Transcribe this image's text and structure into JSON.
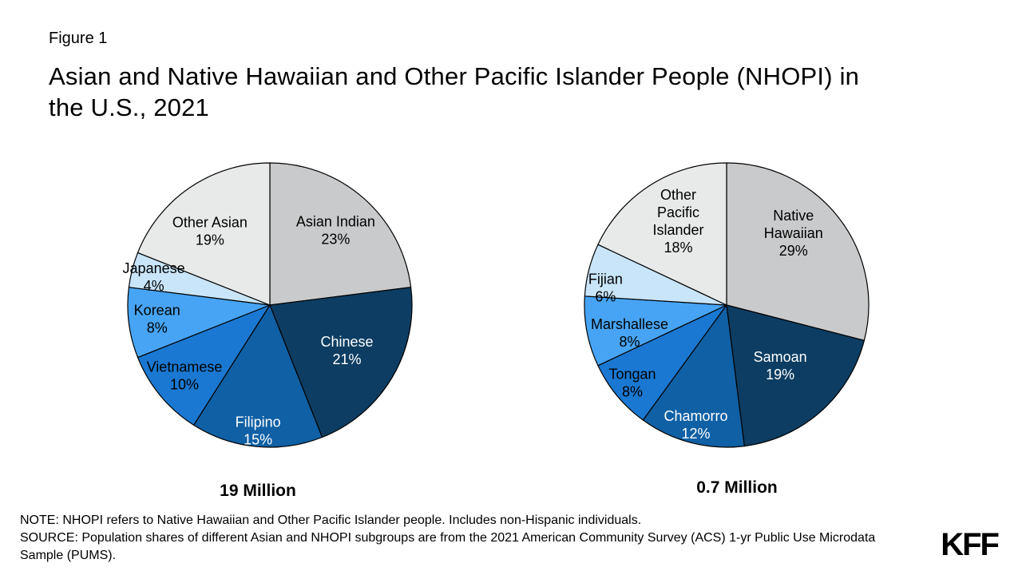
{
  "figure_label": "Figure 1",
  "title": "Asian and Native Hawaiian and Other Pacific Islander People (NHOPI) in the U.S., 2021",
  "note": "NOTE: NHOPI refers to Native Hawaiian and Other Pacific Islander people. Includes non-Hispanic individuals.",
  "source": "SOURCE: Population shares of different Asian and NHOPI subgroups are from the 2021 American Community Survey (ACS) 1-yr Public Use Microdata Sample (PUMS).",
  "logo_text": "KFF",
  "colors": {
    "background": "#FFFFFF",
    "text": "#000000",
    "slice_stroke": "#000000",
    "gray_dark": "#C9CACB",
    "gray_light": "#E8E9E9",
    "navy": "#0D3D62",
    "blue_dark": "#0F60A5",
    "blue_mid": "#1A78D2",
    "blue_light": "#47A4F4",
    "blue_pale": "#C9E5FA"
  },
  "chart_data": [
    {
      "type": "pie",
      "name": "asian-subgroups",
      "total_label": "19 Million",
      "start_angle_deg": 0,
      "direction": "clockwise",
      "slices": [
        {
          "id": "asian-indian",
          "label": "Asian Indian",
          "value": 23,
          "pct_label": "23%",
          "color": "#C9CACB",
          "text_color": "#000000",
          "label_lines": [
            "Asian Indian",
            "23%"
          ],
          "label_r": 0.7
        },
        {
          "id": "chinese",
          "label": "Chinese",
          "value": 21,
          "pct_label": "21%",
          "color": "#0D3D62",
          "text_color": "#FFFFFF",
          "label_lines": [
            "Chinese",
            "21%"
          ],
          "label_r": 0.63
        },
        {
          "id": "filipino",
          "label": "Filipino",
          "value": 15,
          "pct_label": "15%",
          "color": "#0F60A5",
          "text_color": "#FFFFFF",
          "label_lines": [
            "Filipino",
            "15%"
          ],
          "label_r": 0.89
        },
        {
          "id": "vietnamese",
          "label": "Vietnamese",
          "value": 10,
          "pct_label": "10%",
          "color": "#1A78D2",
          "text_color": "#000000",
          "label_lines": [
            "Vietnamese",
            "10%"
          ],
          "label_r": 0.78
        },
        {
          "id": "korean",
          "label": "Korean",
          "value": 8,
          "pct_label": "8%",
          "color": "#47A4F4",
          "text_color": "#000000",
          "label_lines": [
            "Korean",
            "8%"
          ],
          "label_r": 0.8,
          "label_angle": 263
        },
        {
          "id": "japanese",
          "label": "Japanese",
          "value": 4,
          "pct_label": "4%",
          "color": "#C9E5FA",
          "text_color": "#000000",
          "label_lines": [
            "Japanese",
            "4%"
          ],
          "label_r": 0.84,
          "label_angle": 283.5
        },
        {
          "id": "other-asian",
          "label": "Other Asian",
          "value": 19,
          "pct_label": "19%",
          "color": "#E8E9E9",
          "text_color": "#000000",
          "label_lines": [
            "Other Asian",
            "19%"
          ],
          "label_r": 0.67,
          "label_angle": 321
        }
      ]
    },
    {
      "type": "pie",
      "name": "nhopi-subgroups",
      "total_label": "0.7 Million",
      "start_angle_deg": 0,
      "direction": "clockwise",
      "slices": [
        {
          "id": "native-hawaiian",
          "label": "Native Hawaiian",
          "value": 29,
          "pct_label": "29%",
          "color": "#C9CACB",
          "text_color": "#000000",
          "label_lines": [
            "Native",
            "Hawaiian",
            "29%"
          ],
          "label_r": 0.69,
          "label_angle": 43
        },
        {
          "id": "samoan",
          "label": "Samoan",
          "value": 19,
          "pct_label": "19%",
          "color": "#0D3D62",
          "text_color": "#FFFFFF",
          "label_lines": [
            "Samoan",
            "19%"
          ],
          "label_r": 0.57
        },
        {
          "id": "chamorro",
          "label": "Chamorro",
          "value": 12,
          "pct_label": "12%",
          "color": "#0F60A5",
          "text_color": "#FFFFFF",
          "label_lines": [
            "Chamorro",
            "12%"
          ],
          "label_r": 0.87
        },
        {
          "id": "tongan",
          "label": "Tongan",
          "value": 8,
          "pct_label": "8%",
          "color": "#1A78D2",
          "text_color": "#000000",
          "label_lines": [
            "Tongan",
            "8%"
          ],
          "label_r": 0.86
        },
        {
          "id": "marshallese",
          "label": "Marshallese",
          "value": 8,
          "pct_label": "8%",
          "color": "#47A4F4",
          "text_color": "#000000",
          "label_lines": [
            "Marshallese",
            "8%"
          ],
          "label_r": 0.71,
          "label_angle": 254
        },
        {
          "id": "fijian",
          "label": "Fijian",
          "value": 6,
          "pct_label": "6%",
          "color": "#C9E5FA",
          "text_color": "#000000",
          "label_lines": [
            "Fijian",
            "6%"
          ],
          "label_r": 0.86,
          "label_angle": 278
        },
        {
          "id": "other-pacific-islander",
          "label": "Other Pacific Islander",
          "value": 18,
          "pct_label": "18%",
          "color": "#E8E9E9",
          "text_color": "#000000",
          "label_lines": [
            "Other",
            "Pacific",
            "Islander",
            "18%"
          ],
          "label_r": 0.68,
          "label_angle": 330
        }
      ]
    }
  ]
}
